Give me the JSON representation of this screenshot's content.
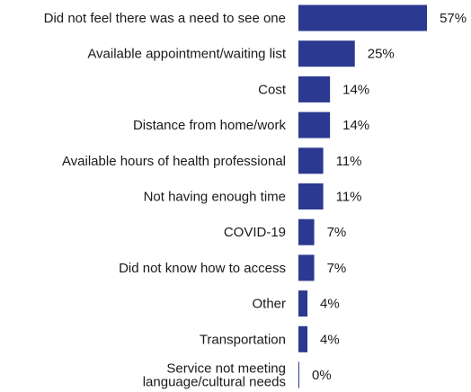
{
  "chart_data": {
    "type": "bar",
    "orientation": "horizontal",
    "bar_color": "#2b3990",
    "categories": [
      [
        "Did not feel there was a need to see one"
      ],
      [
        "Available appointment/waiting list"
      ],
      [
        "Cost"
      ],
      [
        "Distance from home/work"
      ],
      [
        "Available hours of health professional"
      ],
      [
        "Not having enough time"
      ],
      [
        "COVID-19"
      ],
      [
        "Did not know how to access"
      ],
      [
        "Other"
      ],
      [
        "Transportation"
      ],
      [
        "Service not meeting",
        "language/cultural needs"
      ]
    ],
    "values": [
      57,
      25,
      14,
      14,
      11,
      11,
      7,
      7,
      4,
      4,
      0
    ],
    "value_labels": [
      "57%",
      "25%",
      "14%",
      "14%",
      "11%",
      "11%",
      "7%",
      "7%",
      "4%",
      "4%",
      "0%"
    ],
    "xlim": [
      0,
      100
    ],
    "grid": false,
    "legend": "none"
  }
}
